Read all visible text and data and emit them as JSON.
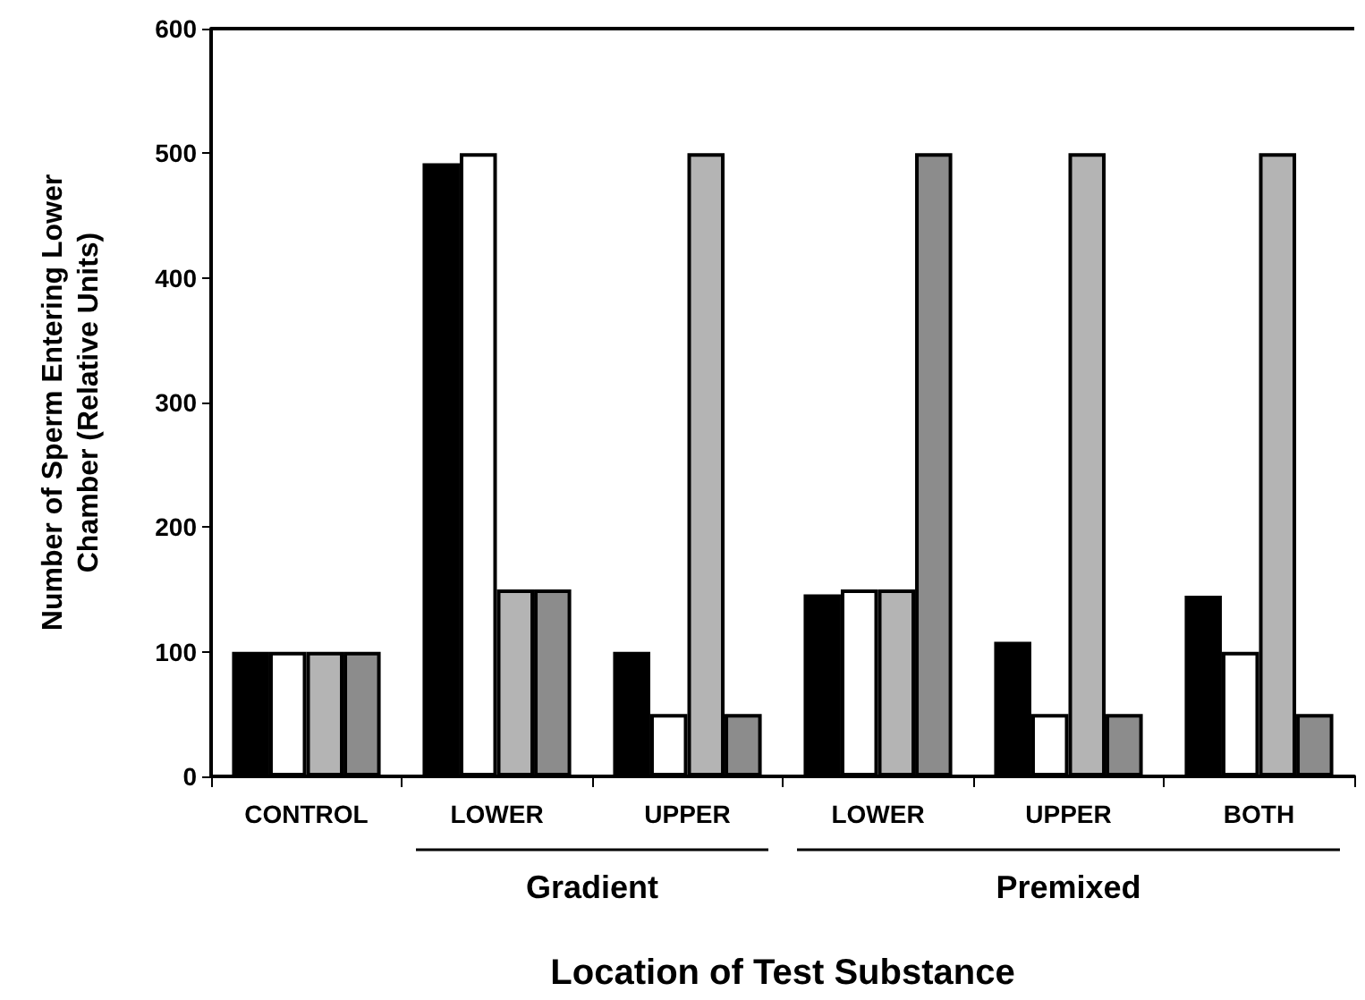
{
  "chart_data": {
    "type": "bar",
    "xlabel": "Location of Test Substance",
    "ylabel": "Number of Sperm Entering Lower\nChamber (Relative Units)",
    "categories": [
      "CONTROL",
      "LOWER",
      "UPPER",
      "LOWER",
      "UPPER",
      "BOTH"
    ],
    "series": [
      {
        "color": "#000000",
        "values": [
          100,
          492,
          100,
          146,
          108,
          145
        ]
      },
      {
        "color": "#ffffff",
        "values": [
          100,
          500,
          50,
          150,
          50,
          100
        ]
      },
      {
        "color": "#b4b4b4",
        "values": [
          100,
          150,
          500,
          150,
          500,
          500
        ]
      },
      {
        "color": "#8c8c8c",
        "values": [
          100,
          150,
          50,
          500,
          50,
          50
        ]
      }
    ],
    "ylim": [
      0,
      600
    ],
    "yticks": [
      0,
      100,
      200,
      300,
      400,
      500,
      600
    ],
    "grid": false,
    "annotations": [
      "Gradient",
      "Premixed"
    ]
  }
}
